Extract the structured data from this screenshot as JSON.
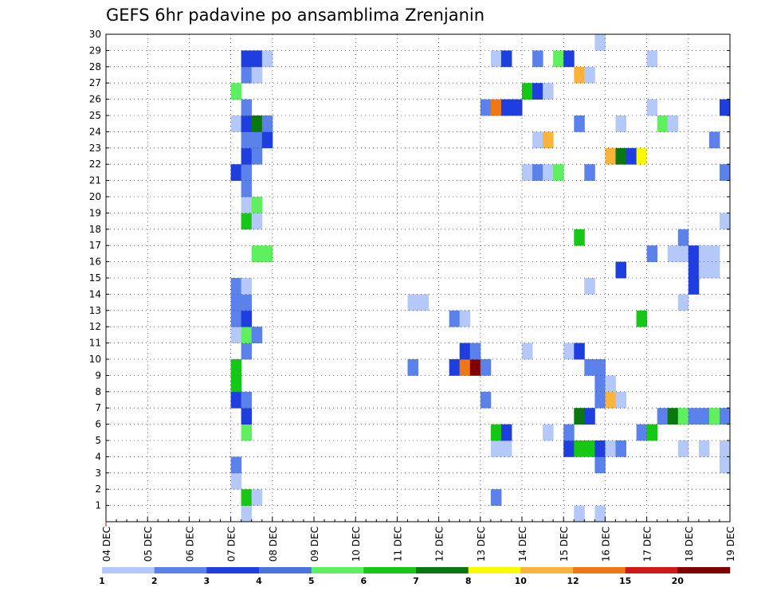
{
  "chart_data": {
    "type": "heatmap",
    "title": "GEFS 6hr padavine po ansamblima Zrenjanin",
    "y_ticks": [
      "1",
      "2",
      "3",
      "4",
      "5",
      "6",
      "7",
      "8",
      "9",
      "10",
      "11",
      "12",
      "13",
      "14",
      "15",
      "16",
      "17",
      "18",
      "19",
      "20",
      "21",
      "22",
      "23",
      "24",
      "25",
      "26",
      "27",
      "28",
      "29",
      "30"
    ],
    "x_ticks": [
      "04 DEC",
      "05 DEC",
      "06 DEC",
      "07 DEC",
      "08 DEC",
      "09 DEC",
      "10 DEC",
      "11 DEC",
      "12 DEC",
      "13 DEC",
      "14 DEC",
      "15 DEC",
      "16 DEC",
      "17 DEC",
      "18 DEC",
      "19 DEC"
    ],
    "ylim": [
      0,
      30
    ],
    "xlim": [
      "04 DEC 00z",
      "19 DEC 00z"
    ],
    "x_step_hours": 6,
    "grid": true,
    "legend": {
      "placement": "bottom",
      "labels": [
        "1",
        "2",
        "3",
        "4",
        "5",
        "6",
        "7",
        "8",
        "10",
        "12",
        "15",
        "20"
      ],
      "colors": [
        "#b4c8fa",
        "#5a82ea",
        "#1e3ee0",
        "#4b73e0",
        "#5ff05f",
        "#16c816",
        "#08780f",
        "#fafa00",
        "#fab43c",
        "#f07814",
        "#d01818",
        "#800000"
      ]
    },
    "cells": [
      [
        3.0,
        3,
        "#b4c8fa"
      ],
      [
        3.0,
        4,
        "#5a82ea"
      ],
      [
        3.0,
        8,
        "#1e3ee0"
      ],
      [
        3.0,
        9,
        "#16c816"
      ],
      [
        3.0,
        10,
        "#16c816"
      ],
      [
        3.0,
        12,
        "#b4c8fa"
      ],
      [
        3.0,
        13,
        "#5a82ea"
      ],
      [
        3.0,
        14,
        "#5a82ea"
      ],
      [
        3.0,
        15,
        "#5a82ea"
      ],
      [
        3.0,
        22,
        "#1e3ee0"
      ],
      [
        3.0,
        25,
        "#b4c8fa"
      ],
      [
        3.0,
        27,
        "#5ff05f"
      ],
      [
        3.25,
        1,
        "#b4c8fa"
      ],
      [
        3.25,
        2,
        "#16c816"
      ],
      [
        3.25,
        6,
        "#5ff05f"
      ],
      [
        3.25,
        7,
        "#1e3ee0"
      ],
      [
        3.25,
        8,
        "#5a82ea"
      ],
      [
        3.25,
        11,
        "#5a82ea"
      ],
      [
        3.25,
        12,
        "#5ff05f"
      ],
      [
        3.25,
        13,
        "#1e3ee0"
      ],
      [
        3.25,
        14,
        "#5a82ea"
      ],
      [
        3.25,
        15,
        "#b4c8fa"
      ],
      [
        3.25,
        19,
        "#16c816"
      ],
      [
        3.25,
        20,
        "#b4c8fa"
      ],
      [
        3.25,
        21,
        "#5a82ea"
      ],
      [
        3.25,
        22,
        "#5a82ea"
      ],
      [
        3.25,
        23,
        "#1e3ee0"
      ],
      [
        3.25,
        24,
        "#5a82ea"
      ],
      [
        3.25,
        25,
        "#1e3ee0"
      ],
      [
        3.25,
        26,
        "#5a82ea"
      ],
      [
        3.25,
        28,
        "#5a82ea"
      ],
      [
        3.25,
        29,
        "#1e3ee0"
      ],
      [
        3.5,
        2,
        "#b4c8fa"
      ],
      [
        3.5,
        12,
        "#5a82ea"
      ],
      [
        3.5,
        17,
        "#5ff05f"
      ],
      [
        3.5,
        19,
        "#b4c8fa"
      ],
      [
        3.5,
        20,
        "#5ff05f"
      ],
      [
        3.5,
        23,
        "#5a82ea"
      ],
      [
        3.5,
        24,
        "#5a82ea"
      ],
      [
        3.5,
        25,
        "#08780f"
      ],
      [
        3.5,
        28,
        "#b4c8fa"
      ],
      [
        3.5,
        29,
        "#1e3ee0"
      ],
      [
        3.75,
        17,
        "#5ff05f"
      ],
      [
        3.75,
        24,
        "#1e3ee0"
      ],
      [
        3.75,
        25,
        "#5a82ea"
      ],
      [
        3.75,
        29,
        "#b4c8fa"
      ],
      [
        7.25,
        10,
        "#5a82ea"
      ],
      [
        7.25,
        14,
        "#b4c8fa"
      ],
      [
        7.5,
        14,
        "#b4c8fa"
      ],
      [
        8.25,
        10,
        "#1e3ee0"
      ],
      [
        8.25,
        13,
        "#5a82ea"
      ],
      [
        8.5,
        10,
        "#f07814"
      ],
      [
        8.5,
        11,
        "#1e3ee0"
      ],
      [
        8.5,
        13,
        "#b4c8fa"
      ],
      [
        8.75,
        10,
        "#800000"
      ],
      [
        8.75,
        11,
        "#5a82ea"
      ],
      [
        9.0,
        8,
        "#5a82ea"
      ],
      [
        9.0,
        10,
        "#5a82ea"
      ],
      [
        9.0,
        26,
        "#5a82ea"
      ],
      [
        9.25,
        2,
        "#5a82ea"
      ],
      [
        9.25,
        5,
        "#b4c8fa"
      ],
      [
        9.25,
        6,
        "#16c816"
      ],
      [
        9.25,
        26,
        "#f07814"
      ],
      [
        9.25,
        29,
        "#b4c8fa"
      ],
      [
        9.5,
        5,
        "#b4c8fa"
      ],
      [
        9.5,
        6,
        "#1e3ee0"
      ],
      [
        9.5,
        26,
        "#1e3ee0"
      ],
      [
        9.5,
        29,
        "#1e3ee0"
      ],
      [
        9.75,
        26,
        "#1e3ee0"
      ],
      [
        10.0,
        11,
        "#b4c8fa"
      ],
      [
        10.0,
        22,
        "#b4c8fa"
      ],
      [
        10.0,
        27,
        "#16c816"
      ],
      [
        10.25,
        22,
        "#5a82ea"
      ],
      [
        10.25,
        24,
        "#b4c8fa"
      ],
      [
        10.25,
        27,
        "#1e3ee0"
      ],
      [
        10.25,
        29,
        "#5a82ea"
      ],
      [
        10.5,
        6,
        "#b4c8fa"
      ],
      [
        10.5,
        22,
        "#b4c8fa"
      ],
      [
        10.5,
        24,
        "#fab43c"
      ],
      [
        10.5,
        27,
        "#b4c8fa"
      ],
      [
        10.75,
        22,
        "#5ff05f"
      ],
      [
        10.75,
        29,
        "#5ff05f"
      ],
      [
        11.0,
        5,
        "#1e3ee0"
      ],
      [
        11.0,
        6,
        "#5a82ea"
      ],
      [
        11.0,
        11,
        "#b4c8fa"
      ],
      [
        11.0,
        29,
        "#1e3ee0"
      ],
      [
        11.25,
        1,
        "#b4c8fa"
      ],
      [
        11.25,
        5,
        "#16c816"
      ],
      [
        11.25,
        7,
        "#08780f"
      ],
      [
        11.25,
        11,
        "#1e3ee0"
      ],
      [
        11.25,
        18,
        "#16c816"
      ],
      [
        11.25,
        25,
        "#5a82ea"
      ],
      [
        11.25,
        28,
        "#fab43c"
      ],
      [
        11.5,
        5,
        "#16c816"
      ],
      [
        11.5,
        7,
        "#1e3ee0"
      ],
      [
        11.5,
        10,
        "#5a82ea"
      ],
      [
        11.5,
        15,
        "#b4c8fa"
      ],
      [
        11.5,
        22,
        "#5a82ea"
      ],
      [
        11.5,
        28,
        "#b4c8fa"
      ],
      [
        11.75,
        1,
        "#b4c8fa"
      ],
      [
        11.75,
        4,
        "#5a82ea"
      ],
      [
        11.75,
        5,
        "#1e3ee0"
      ],
      [
        11.75,
        8,
        "#5a82ea"
      ],
      [
        11.75,
        9,
        "#5a82ea"
      ],
      [
        11.75,
        10,
        "#5a82ea"
      ],
      [
        11.75,
        30,
        "#b4c8fa"
      ],
      [
        12.0,
        5,
        "#b4c8fa"
      ],
      [
        12.0,
        8,
        "#fab43c"
      ],
      [
        12.0,
        9,
        "#b4c8fa"
      ],
      [
        12.0,
        23,
        "#fab43c"
      ],
      [
        12.25,
        5,
        "#5a82ea"
      ],
      [
        12.25,
        8,
        "#b4c8fa"
      ],
      [
        12.25,
        16,
        "#1e3ee0"
      ],
      [
        12.25,
        23,
        "#08780f"
      ],
      [
        12.25,
        25,
        "#b4c8fa"
      ],
      [
        12.5,
        23,
        "#1e3ee0"
      ],
      [
        12.75,
        6,
        "#5a82ea"
      ],
      [
        12.75,
        13,
        "#16c816"
      ],
      [
        12.75,
        23,
        "#fafa00"
      ],
      [
        13.0,
        6,
        "#16c816"
      ],
      [
        13.0,
        17,
        "#5a82ea"
      ],
      [
        13.0,
        26,
        "#b4c8fa"
      ],
      [
        13.0,
        29,
        "#b4c8fa"
      ],
      [
        13.25,
        7,
        "#5a82ea"
      ],
      [
        13.25,
        25,
        "#5ff05f"
      ],
      [
        13.5,
        7,
        "#08780f"
      ],
      [
        13.5,
        17,
        "#b4c8fa"
      ],
      [
        13.5,
        25,
        "#b4c8fa"
      ],
      [
        13.75,
        5,
        "#b4c8fa"
      ],
      [
        13.75,
        7,
        "#5ff05f"
      ],
      [
        13.75,
        14,
        "#b4c8fa"
      ],
      [
        13.75,
        17,
        "#b4c8fa"
      ],
      [
        13.75,
        18,
        "#5a82ea"
      ],
      [
        14.0,
        7,
        "#5a82ea"
      ],
      [
        14.0,
        15,
        "#1e3ee0"
      ],
      [
        14.0,
        16,
        "#1e3ee0"
      ],
      [
        14.0,
        17,
        "#1e3ee0"
      ],
      [
        14.25,
        5,
        "#b4c8fa"
      ],
      [
        14.25,
        7,
        "#5a82ea"
      ],
      [
        14.25,
        16,
        "#b4c8fa"
      ],
      [
        14.25,
        17,
        "#b4c8fa"
      ],
      [
        14.5,
        7,
        "#5ff05f"
      ],
      [
        14.5,
        16,
        "#b4c8fa"
      ],
      [
        14.5,
        17,
        "#b4c8fa"
      ],
      [
        14.5,
        24,
        "#5a82ea"
      ],
      [
        14.75,
        4,
        "#b4c8fa"
      ],
      [
        14.75,
        5,
        "#b4c8fa"
      ],
      [
        14.75,
        7,
        "#5a82ea"
      ],
      [
        14.75,
        19,
        "#b4c8fa"
      ],
      [
        14.75,
        22,
        "#5a82ea"
      ],
      [
        14.75,
        26,
        "#1e3ee0"
      ]
    ]
  }
}
